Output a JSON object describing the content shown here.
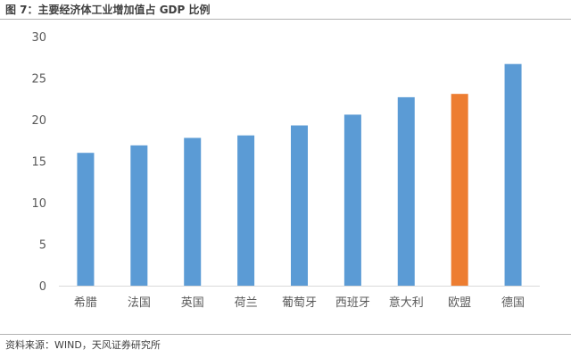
{
  "title": "图 7：主要经济体工业增加值占 GDP 比例",
  "source": "资料来源：WIND，天风证券研究所",
  "colors": {
    "bar": "#5b9bd5",
    "highlight": "#ed7d31",
    "axis": "#d9d9d9"
  },
  "chart_data": {
    "type": "bar",
    "title": "",
    "xlabel": "",
    "ylabel": "",
    "ylim": [
      0,
      30
    ],
    "yticks": [
      0,
      5,
      10,
      15,
      20,
      25,
      30
    ],
    "grid": false,
    "legend": "none",
    "categories": [
      "希腊",
      "法国",
      "英国",
      "荷兰",
      "葡萄牙",
      "西班牙",
      "意大利",
      "欧盟",
      "德国"
    ],
    "values": [
      16.0,
      16.9,
      17.8,
      18.1,
      19.3,
      20.6,
      22.7,
      23.1,
      26.7
    ],
    "highlight_category": "欧盟"
  }
}
